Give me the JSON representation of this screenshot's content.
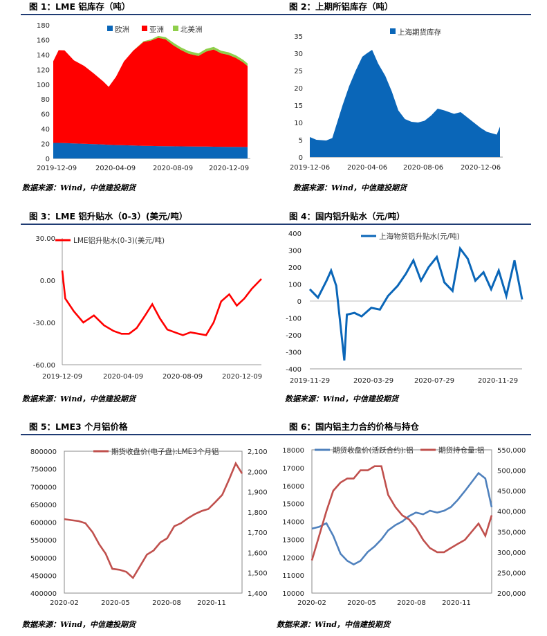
{
  "captions": {
    "c1": "图 1：LME 铝库存（吨）",
    "c2": "图 2：上期所铝库存（吨）",
    "c3": "图 3：LME 铝升贴水（0-3）(美元/吨）",
    "c4": "图 4：国内铝升贴水（元/吨）",
    "c5": "图 5：LME3 个月铝价格",
    "c6": "图 6：国内铝主力合约价格与持仓"
  },
  "source_text": "数据来源：Wind，中信建投期货",
  "colors": {
    "blue": "#0a66b8",
    "red": "#ff0000",
    "green": "#8fcf4b",
    "darkred": "#c0504d",
    "steel": "#4f81bd",
    "rule": "#1f3b73"
  },
  "chart_data": [
    {
      "id": "c1",
      "type": "area",
      "title": "LME 铝库存（吨）",
      "x_ticks": [
        "2019-12-09",
        "2020-04-09",
        "2020-08-09",
        "2020-12-09"
      ],
      "y_ticks": [
        "0",
        "20",
        "40",
        "60",
        "80",
        "100",
        "120",
        "140",
        "160",
        "180"
      ],
      "ylim": [
        0,
        180
      ],
      "x": [
        "2019-12-09",
        "2019-12-20",
        "2020-01-01",
        "2020-01-20",
        "2020-02-10",
        "2020-03-01",
        "2020-03-20",
        "2020-03-31",
        "2020-04-15",
        "2020-05-01",
        "2020-05-20",
        "2020-06-10",
        "2020-06-25",
        "2020-07-10",
        "2020-07-25",
        "2020-08-10",
        "2020-08-25",
        "2020-09-10",
        "2020-09-30",
        "2020-10-15",
        "2020-10-31",
        "2020-11-15",
        "2020-11-30",
        "2020-12-15",
        "2020-12-30",
        "2021-01-08"
      ],
      "series": [
        {
          "name": "欧洲",
          "values": [
            21,
            21,
            20.7,
            20.3,
            19.8,
            19.3,
            18.8,
            18.5,
            18.1,
            17.8,
            17.4,
            17.1,
            16.9,
            16.7,
            16.5,
            16.4,
            16.3,
            16.2,
            16.1,
            16,
            15.9,
            15.8,
            15.7,
            15.6,
            15.5,
            15.5
          ]
        },
        {
          "name": "亚洲",
          "values": [
            110,
            125,
            125,
            112,
            105,
            95,
            85,
            78,
            92,
            113,
            128,
            140,
            142,
            146,
            144,
            136,
            130,
            125,
            122,
            128,
            131,
            126,
            124,
            120,
            114,
            109
          ]
        },
        {
          "name": "北美洲",
          "values": [
            0,
            0,
            0,
            0,
            0,
            0,
            0,
            0,
            0,
            0,
            0,
            1,
            1.5,
            2.5,
            3,
            3.5,
            3.5,
            3.5,
            3.5,
            3.5,
            3.5,
            3.5,
            3.5,
            3.5,
            3.5,
            3.5
          ]
        }
      ]
    },
    {
      "id": "c2",
      "type": "area",
      "title": "上期所铝库存（吨）",
      "x_ticks": [
        "2019-12-06",
        "2020-04-06",
        "2020-08-06",
        "2020-12-06"
      ],
      "y_ticks": [
        "0",
        "5",
        "10",
        "15",
        "20",
        "25",
        "30",
        "35"
      ],
      "ylim": [
        0,
        35
      ],
      "x": [
        "2019-12-06",
        "2019-12-20",
        "2020-01-10",
        "2020-01-23",
        "2020-02-14",
        "2020-02-28",
        "2020-03-13",
        "2020-03-27",
        "2020-04-06",
        "2020-04-17",
        "2020-04-30",
        "2020-05-15",
        "2020-05-29",
        "2020-06-12",
        "2020-06-26",
        "2020-07-10",
        "2020-07-24",
        "2020-08-07",
        "2020-08-21",
        "2020-09-04",
        "2020-09-18",
        "2020-10-09",
        "2020-10-23",
        "2020-11-06",
        "2020-11-20",
        "2020-12-04",
        "2020-12-18",
        "2021-01-08",
        "2021-01-15"
      ],
      "series": [
        {
          "name": "上海期货库存",
          "values": [
            5.8,
            5,
            4.8,
            5.5,
            15,
            20.5,
            25,
            29,
            30,
            31,
            27,
            23.5,
            19,
            13.5,
            11,
            10.2,
            10,
            10.5,
            12,
            14,
            13.5,
            12.5,
            13,
            11.5,
            10,
            8.5,
            7.3,
            6.5,
            8.8
          ]
        }
      ]
    },
    {
      "id": "c3",
      "type": "line",
      "title": "LME 铝升贴水（0-3）(美元/吨）",
      "x_ticks": [
        "2019-12-09",
        "2020-04-09",
        "2020-08-09",
        "2020-12-09"
      ],
      "y_ticks": [
        "-60.00",
        "-30.00",
        "0.00",
        "30.00"
      ],
      "ylim": [
        -60,
        30
      ],
      "x": [
        "2019-12-09",
        "2019-12-15",
        "2020-01-01",
        "2020-01-20",
        "2020-02-10",
        "2020-03-01",
        "2020-03-20",
        "2020-04-05",
        "2020-04-20",
        "2020-05-05",
        "2020-05-20",
        "2020-06-05",
        "2020-06-20",
        "2020-07-05",
        "2020-07-20",
        "2020-08-05",
        "2020-08-20",
        "2020-09-05",
        "2020-09-20",
        "2020-10-05",
        "2020-10-20",
        "2020-11-05",
        "2020-11-20",
        "2020-12-05",
        "2020-12-20",
        "2021-01-08"
      ],
      "series": [
        {
          "name": "LME铝升贴水(0-3)(美元/吨)",
          "values": [
            7,
            -13,
            -22,
            -30,
            -25,
            -32,
            -36,
            -38,
            -38,
            -34,
            -26,
            -17,
            -27,
            -35,
            -37,
            -39,
            -37,
            -38,
            -39,
            -30,
            -15,
            -10,
            -18,
            -13,
            -6,
            1
          ]
        }
      ]
    },
    {
      "id": "c4",
      "type": "line",
      "title": "国内铝升贴水（元/吨）",
      "x_ticks": [
        "2019-11-29",
        "2020-03-29",
        "2020-07-29",
        "2020-11-29"
      ],
      "y_ticks": [
        "-400",
        "-300",
        "-200",
        "-100",
        "0",
        "100",
        "200",
        "300",
        "400"
      ],
      "ylim": [
        -400,
        400
      ],
      "x": [
        "2019-11-29",
        "2019-12-15",
        "2020-01-01",
        "2020-01-10",
        "2020-01-20",
        "2020-02-05",
        "2020-02-10",
        "2020-02-25",
        "2020-03-10",
        "2020-03-29",
        "2020-04-15",
        "2020-05-01",
        "2020-05-20",
        "2020-06-05",
        "2020-06-20",
        "2020-07-05",
        "2020-07-20",
        "2020-08-05",
        "2020-08-20",
        "2020-09-05",
        "2020-09-20",
        "2020-10-05",
        "2020-10-20",
        "2020-11-05",
        "2020-11-20",
        "2020-12-05",
        "2020-12-20",
        "2021-01-05",
        "2021-01-20"
      ],
      "series": [
        {
          "name": "上海物贸铝升贴水(元/吨)",
          "values": [
            70,
            20,
            120,
            180,
            90,
            -350,
            -80,
            -70,
            -90,
            -40,
            -50,
            30,
            90,
            160,
            240,
            120,
            200,
            260,
            110,
            60,
            310,
            250,
            120,
            170,
            70,
            180,
            30,
            240,
            10
          ]
        }
      ]
    },
    {
      "id": "c5",
      "type": "line",
      "title": "LME3 个月铝价格",
      "x_ticks": [
        "2020-02",
        "2020-05",
        "2020-08",
        "2020-11"
      ],
      "y_ticks": [
        "400000",
        "450000",
        "500000",
        "550000",
        "600000",
        "650000",
        "700000",
        "750000",
        "800000"
      ],
      "y2_ticks": [
        "1,400",
        "1,500",
        "1,600",
        "1,700",
        "1,800",
        "1,900",
        "2,000",
        "2,100"
      ],
      "ylim": [
        1400,
        2100
      ],
      "x": [
        "2019-12-09",
        "2019-12-25",
        "2020-01-10",
        "2020-01-25",
        "2020-02-10",
        "2020-02-25",
        "2020-03-10",
        "2020-03-25",
        "2020-04-10",
        "2020-04-25",
        "2020-05-10",
        "2020-05-25",
        "2020-06-10",
        "2020-06-25",
        "2020-07-10",
        "2020-07-25",
        "2020-08-10",
        "2020-08-25",
        "2020-09-10",
        "2020-09-25",
        "2020-10-10",
        "2020-10-25",
        "2020-11-10",
        "2020-11-25",
        "2020-12-10",
        "2020-12-25",
        "2021-01-08"
      ],
      "series": [
        {
          "name": "期货收盘价(电子盘):LME3个月铝",
          "values": [
            1765,
            1760,
            1755,
            1745,
            1700,
            1640,
            1595,
            1520,
            1515,
            1505,
            1475,
            1530,
            1590,
            1610,
            1650,
            1670,
            1730,
            1745,
            1770,
            1790,
            1805,
            1815,
            1850,
            1885,
            1960,
            2040,
            1990
          ]
        }
      ]
    },
    {
      "id": "c6",
      "type": "line",
      "title": "国内铝主力合约价格与持仓",
      "x_ticks": [
        "2020-02",
        "2020-05",
        "2020-08",
        "2020-11"
      ],
      "y_ticks": [
        "10000",
        "11000",
        "12000",
        "13000",
        "14000",
        "15000",
        "16000",
        "17000",
        "18000"
      ],
      "y2_ticks": [
        "200,000",
        "250,000",
        "300,000",
        "350,000",
        "400,000",
        "450,000",
        "500,000",
        "550,000"
      ],
      "x": [
        "2019-12-09",
        "2019-12-25",
        "2020-01-10",
        "2020-01-25",
        "2020-02-10",
        "2020-02-25",
        "2020-03-10",
        "2020-03-25",
        "2020-04-10",
        "2020-04-25",
        "2020-05-10",
        "2020-05-25",
        "2020-06-10",
        "2020-06-25",
        "2020-07-10",
        "2020-07-25",
        "2020-08-10",
        "2020-08-25",
        "2020-09-10",
        "2020-09-25",
        "2020-10-10",
        "2020-10-25",
        "2020-11-10",
        "2020-11-25",
        "2020-12-10",
        "2020-12-25",
        "2021-01-08"
      ],
      "series": [
        {
          "name": "期货收盘价(活跃合约):铝",
          "axis": "left",
          "ylim": [
            10000,
            18000
          ],
          "values": [
            13600,
            13700,
            13900,
            13200,
            12200,
            11800,
            11600,
            11800,
            12300,
            12600,
            13000,
            13500,
            13800,
            14000,
            14300,
            14500,
            14400,
            14600,
            14500,
            14600,
            14800,
            15200,
            15700,
            16200,
            16700,
            16400,
            14800
          ]
        },
        {
          "name": "期货持仓量:铝",
          "axis": "right",
          "ylim": [
            200000,
            550000
          ],
          "values": [
            280000,
            340000,
            400000,
            450000,
            470000,
            480000,
            480000,
            500000,
            500000,
            510000,
            510000,
            440000,
            410000,
            390000,
            380000,
            360000,
            330000,
            310000,
            300000,
            300000,
            310000,
            320000,
            330000,
            350000,
            370000,
            340000,
            390000
          ]
        }
      ]
    }
  ]
}
